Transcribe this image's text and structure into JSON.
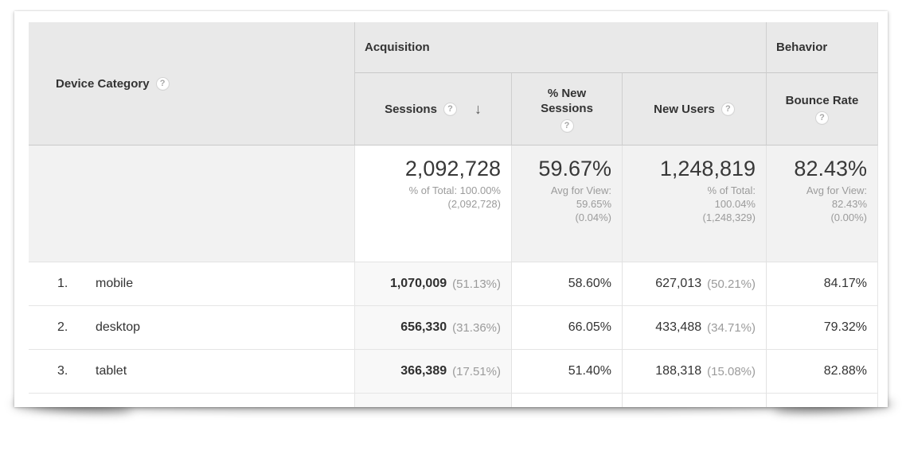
{
  "table": {
    "dimension_column": {
      "label": "Device Category",
      "help_icon": "?"
    },
    "group_headers": {
      "acquisition": "Acquisition",
      "behavior": "Behavior"
    },
    "column_headers": {
      "sessions": {
        "label": "Sessions",
        "help_icon": "?",
        "sort_icon": "↓",
        "sort_direction": "descending"
      },
      "pct_new_sessions": {
        "label_line1": "% New",
        "label_line2": "Sessions",
        "help_icon": "?"
      },
      "new_users": {
        "label": "New Users",
        "help_icon": "?"
      },
      "bounce_rate": {
        "label": "Bounce Rate",
        "help_icon": "?"
      }
    },
    "summary_row": {
      "sessions": {
        "value": "2,092,728",
        "sub_lines": [
          "% of Total: 100.00%",
          "(2,092,728)"
        ]
      },
      "pct_new_sessions": {
        "value": "59.67%",
        "sub_lines": [
          "Avg for View:",
          "59.65%",
          "(0.04%)"
        ]
      },
      "new_users": {
        "value": "1,248,819",
        "sub_lines": [
          "% of Total:",
          "100.04%",
          "(1,248,329)"
        ]
      },
      "bounce_rate": {
        "value": "82.43%",
        "sub_lines": [
          "Avg for View:",
          "82.43%",
          "(0.00%)"
        ]
      }
    },
    "rows": [
      {
        "index": "1.",
        "label": "mobile",
        "sessions_value": "1,070,009",
        "sessions_pct": "(51.13%)",
        "pct_new_sessions": "58.60%",
        "new_users_value": "627,013",
        "new_users_pct": "(50.21%)",
        "bounce_rate": "84.17%"
      },
      {
        "index": "2.",
        "label": "desktop",
        "sessions_value": "656,330",
        "sessions_pct": "(31.36%)",
        "pct_new_sessions": "66.05%",
        "new_users_value": "433,488",
        "new_users_pct": "(34.71%)",
        "bounce_rate": "79.32%"
      },
      {
        "index": "3.",
        "label": "tablet",
        "sessions_value": "366,389",
        "sessions_pct": "(17.51%)",
        "pct_new_sessions": "51.40%",
        "new_users_value": "188,318",
        "new_users_pct": "(15.08%)",
        "bounce_rate": "82.88%"
      }
    ],
    "colors": {
      "header_bg": "#e9e9e9",
      "summary_bg": "#f2f2f2",
      "sorted_cell_bg": "#f8f8f8",
      "row_border": "#e5e5e5",
      "text_dark": "#333333",
      "text_gray": "#9b9b9b"
    }
  }
}
